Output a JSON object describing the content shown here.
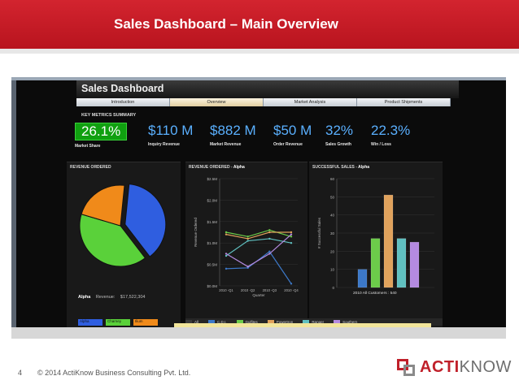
{
  "slide": {
    "title": "Sales Dashboard – Main Overview",
    "page_number": "4",
    "copyright": "© 2014 ActiKnow Business Consulting Pvt. Ltd.",
    "logo": {
      "part1": "ACTI",
      "part2": "KNOW"
    }
  },
  "dashboard": {
    "title": "Sales Dashboard",
    "tabs": [
      {
        "label": "Introduction",
        "active": false
      },
      {
        "label": "Overview",
        "active": true
      },
      {
        "label": "Market Analysis",
        "active": false
      },
      {
        "label": "Product Shipments",
        "active": false
      }
    ],
    "key_metrics_title": "KEY METRICS SUMMARY",
    "metrics": [
      {
        "value": "26.1%",
        "label": "Market Share"
      },
      {
        "value": "$110 M",
        "label": "Inquiry Revenue"
      },
      {
        "value": "$882 M",
        "label": "Market Revenue"
      },
      {
        "value": "$50 M",
        "label": "Order Revenue"
      },
      {
        "value": "32%",
        "label": "Sales Growth"
      },
      {
        "value": "22.3%",
        "label": "Win / Loss"
      }
    ],
    "revenue_panel": {
      "title": "REVENUE ORDERED",
      "alpha_label": "Alpha",
      "revenue_label": "Revenue:",
      "revenue_value": "$17,522,304",
      "legend": [
        "Alpha",
        "Charney",
        "Ilium"
      ]
    },
    "line_panel": {
      "title": "REVENUE ORDERED -",
      "title_em": "Alpha",
      "ylabel": "Revenue Ordered",
      "xlabel": "Quarter"
    },
    "bar_panel": {
      "title": "SUCCESSFUL SALES -",
      "title_em": "Alpha",
      "ylabel": "# Successful Sales",
      "caption": "2010 All Customers :",
      "caption_value": "540"
    },
    "series_legend": [
      {
        "label": "All",
        "color": "#3a3a3a"
      },
      {
        "label": "C.D.I.",
        "color": "#3c78c8"
      },
      {
        "label": "Gulfites",
        "color": "#6ccc4a"
      },
      {
        "label": "Powertron",
        "color": "#e0a25c"
      },
      {
        "label": "Ranger",
        "color": "#60c0c0"
      },
      {
        "label": "Southern",
        "color": "#b48ae0"
      }
    ]
  },
  "chart_data": [
    {
      "type": "pie",
      "title": "REVENUE ORDERED",
      "categories": [
        "Alpha",
        "Charney",
        "Ilium"
      ],
      "values": [
        38,
        40,
        22
      ],
      "colors": [
        "#2f5ee0",
        "#5ad13a",
        "#f08a1a"
      ]
    },
    {
      "type": "line",
      "title": "REVENUE ORDERED - Alpha",
      "xlabel": "Quarter",
      "ylabel": "Revenue Ordered",
      "categories": [
        "2010 -Q1",
        "2010 -Q2",
        "2010 -Q3",
        "2010 -Q4"
      ],
      "ylim": [
        0,
        2500000
      ],
      "yticks": [
        "$0.0M",
        "$0.5M",
        "$1.0M",
        "$1.5M",
        "$2.0M",
        "$2.5M"
      ],
      "series": [
        {
          "color": "#3c78c8",
          "values": [
            400000,
            420000,
            800000,
            50000
          ]
        },
        {
          "color": "#6ccc4a",
          "values": [
            1250000,
            1150000,
            1300000,
            1150000
          ]
        },
        {
          "color": "#e0a25c",
          "values": [
            1200000,
            1100000,
            1250000,
            1250000
          ]
        },
        {
          "color": "#60c0c0",
          "values": [
            700000,
            1050000,
            1100000,
            1000000
          ]
        },
        {
          "color": "#b48ae0",
          "values": [
            750000,
            450000,
            750000,
            1200000
          ]
        }
      ]
    },
    {
      "type": "bar",
      "title": "SUCCESSFUL SALES - Alpha",
      "ylabel": "# Successful Sales",
      "ylim": [
        0,
        60
      ],
      "yticks": [
        "0",
        "10",
        "20",
        "30",
        "40",
        "50",
        "60"
      ],
      "categories": [
        "C.D.I.",
        "Gulfites",
        "Powertron",
        "Ranger",
        "Southern"
      ],
      "values": [
        10,
        27,
        51,
        27,
        25
      ],
      "colors": [
        "#3c78c8",
        "#6ccc4a",
        "#e0a25c",
        "#60c0c0",
        "#b48ae0"
      ]
    }
  ]
}
